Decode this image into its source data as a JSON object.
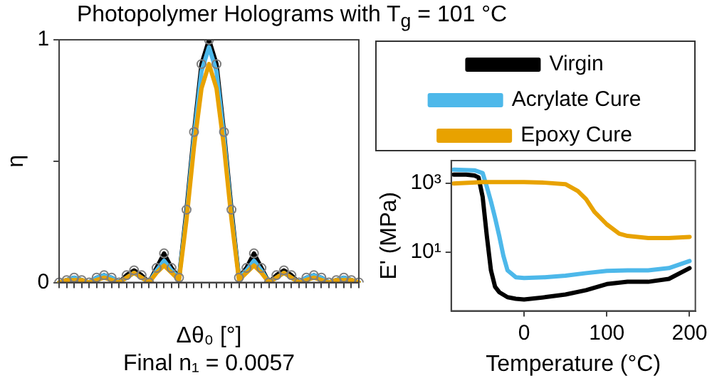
{
  "chart_data": [
    {
      "type": "line",
      "title": "Photopolymer Holograms with T$_{g}$ = 101 °C",
      "xlabel": "Δθ₀ [°]",
      "ylabel": "η",
      "annotations": [
        "Final n₁ = 0.0057"
      ],
      "categories": [
        null,
        null,
        null,
        null,
        null,
        null,
        null,
        null,
        null,
        null,
        null,
        null,
        null,
        null,
        null,
        null,
        null,
        null,
        null,
        null,
        null,
        null,
        null,
        null,
        null,
        null,
        null,
        null,
        null,
        null,
        null,
        null,
        null,
        null,
        null,
        null,
        null,
        null,
        null,
        null,
        null
      ],
      "ylim": [
        0,
        1
      ],
      "yticks": [
        0,
        {
          "value": 0.5,
          "label": null
        },
        1
      ],
      "grid": false,
      "legend": false,
      "series": [
        {
          "type": "scatter",
          "marker": "circle",
          "color": "#7f7f7f",
          "values": [
            0,
            0.01,
            0.02,
            0.01,
            0,
            0.02,
            0.03,
            0.02,
            0,
            0.03,
            0.05,
            0.03,
            0,
            0.06,
            0.12,
            0.06,
            0.02,
            0.3,
            0.62,
            0.9,
            1,
            0.9,
            0.62,
            0.3,
            0.02,
            0.06,
            0.12,
            0.06,
            0,
            0.03,
            0.05,
            0.03,
            0,
            0.02,
            0.03,
            0.02,
            0,
            0.01,
            0.02,
            0.01,
            0
          ]
        },
        {
          "color": "#000000",
          "values": [
            0,
            0.01,
            0.02,
            0.01,
            0,
            0.02,
            0.03,
            0.02,
            0,
            0.03,
            0.05,
            0.03,
            0,
            0.06,
            0.12,
            0.06,
            0.02,
            0.3,
            0.62,
            0.9,
            1,
            0.9,
            0.62,
            0.3,
            0.02,
            0.06,
            0.12,
            0.06,
            0,
            0.03,
            0.05,
            0.03,
            0,
            0.02,
            0.03,
            0.02,
            0,
            0.01,
            0.02,
            0.01,
            0
          ]
        },
        {
          "color": "#4db8ea",
          "values": [
            0,
            0.01,
            0.02,
            0.01,
            0,
            0.02,
            0.03,
            0.02,
            0,
            0.02,
            0.04,
            0.02,
            0,
            0.05,
            0.09,
            0.05,
            0.02,
            0.28,
            0.6,
            0.87,
            0.97,
            0.87,
            0.6,
            0.28,
            0.02,
            0.05,
            0.09,
            0.05,
            0,
            0.02,
            0.04,
            0.02,
            0,
            0.02,
            0.03,
            0.02,
            0,
            0.01,
            0.02,
            0.01,
            0
          ]
        },
        {
          "color": "#e8a200",
          "values": [
            0,
            0.01,
            0.01,
            0.01,
            0,
            0.01,
            0.02,
            0.01,
            0,
            0.02,
            0.04,
            0.02,
            0,
            0.04,
            0.07,
            0.04,
            0.01,
            0.26,
            0.56,
            0.8,
            0.9,
            0.8,
            0.56,
            0.26,
            0.01,
            0.04,
            0.07,
            0.04,
            0,
            0.02,
            0.04,
            0.02,
            0,
            0.01,
            0.02,
            0.01,
            0,
            0.01,
            0.01,
            0.01,
            0
          ]
        }
      ]
    },
    {
      "type": "line",
      "xlabel": "Temperature (°C)",
      "ylabel": "E' (MPa)",
      "log": "y",
      "xlim": [
        -88,
        207
      ],
      "xticks": [
        0,
        100,
        200
      ],
      "ylim": [
        0.2,
        4600
      ],
      "yticks": [
        {
          "value": 10,
          "label": "10¹"
        },
        {
          "value": 1000,
          "label": "10³"
        }
      ],
      "grid": false,
      "legend": "top",
      "series": [
        {
          "name": "Virgin",
          "color": "#000000",
          "x": [
            -85,
            -70,
            -60,
            -55,
            -50,
            -45,
            -40,
            -35,
            -30,
            -20,
            -10,
            0,
            25,
            50,
            75,
            100,
            125,
            150,
            175,
            200
          ],
          "values": [
            1800,
            1800,
            1700,
            1500,
            400,
            30,
            3,
            1,
            0.7,
            0.5,
            0.45,
            0.43,
            0.5,
            0.6,
            0.8,
            1.2,
            1.4,
            1.4,
            1.7,
            3.5
          ]
        },
        {
          "name": "Acrylate Cure",
          "color": "#4db8ea",
          "x": [
            -85,
            -60,
            -50,
            -45,
            -40,
            -35,
            -30,
            -25,
            -20,
            -10,
            0,
            25,
            50,
            75,
            100,
            125,
            150,
            175,
            200
          ],
          "values": [
            2500,
            2400,
            2000,
            800,
            300,
            100,
            30,
            8,
            3,
            1.9,
            1.8,
            1.9,
            2.1,
            2.5,
            2.9,
            3,
            3,
            3.5,
            5.6
          ]
        },
        {
          "name": "Epoxy Cure",
          "color": "#e8a200",
          "x": [
            -85,
            -50,
            0,
            25,
            50,
            65,
            75,
            85,
            100,
            115,
            125,
            150,
            175,
            200
          ],
          "values": [
            1000,
            1100,
            1100,
            1050,
            950,
            600,
            350,
            150,
            65,
            35,
            30,
            26,
            26,
            28
          ]
        }
      ]
    }
  ]
}
